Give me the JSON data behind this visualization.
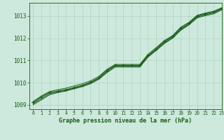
{
  "title": "Graphe pression niveau de la mer (hPa)",
  "bg_color": "#cde8dc",
  "grid_color": "#b0d4c4",
  "line_color": "#1a5c1a",
  "xlim": [
    -0.5,
    23
  ],
  "ylim": [
    1008.8,
    1013.6
  ],
  "yticks": [
    1009,
    1010,
    1011,
    1012,
    1013
  ],
  "xticks": [
    0,
    1,
    2,
    3,
    4,
    5,
    6,
    7,
    8,
    9,
    10,
    11,
    12,
    13,
    14,
    15,
    16,
    17,
    18,
    19,
    20,
    21,
    22,
    23
  ],
  "hours": [
    0,
    1,
    2,
    3,
    4,
    5,
    6,
    7,
    8,
    9,
    10,
    11,
    12,
    13,
    14,
    15,
    16,
    17,
    18,
    19,
    20,
    21,
    22,
    23
  ],
  "series_main": [
    1009.1,
    1009.35,
    1009.55,
    1009.62,
    1009.68,
    1009.78,
    1009.88,
    1010.02,
    1010.22,
    1010.55,
    1010.78,
    1010.78,
    1010.78,
    1010.78,
    1011.22,
    1011.52,
    1011.85,
    1012.08,
    1012.45,
    1012.68,
    1013.0,
    1013.1,
    1013.18,
    1013.35
  ],
  "series2": [
    1009.15,
    1009.4,
    1009.6,
    1009.68,
    1009.75,
    1009.85,
    1009.95,
    1010.08,
    1010.28,
    1010.6,
    1010.82,
    1010.82,
    1010.82,
    1010.82,
    1011.28,
    1011.58,
    1011.9,
    1012.12,
    1012.5,
    1012.72,
    1013.04,
    1013.14,
    1013.22,
    1013.38
  ],
  "series3": [
    1009.05,
    1009.28,
    1009.5,
    1009.58,
    1009.65,
    1009.75,
    1009.85,
    1009.98,
    1010.18,
    1010.5,
    1010.74,
    1010.74,
    1010.74,
    1010.74,
    1011.18,
    1011.48,
    1011.8,
    1012.04,
    1012.4,
    1012.64,
    1012.96,
    1013.06,
    1013.14,
    1013.32
  ],
  "series4": [
    1009.0,
    1009.22,
    1009.45,
    1009.55,
    1009.62,
    1009.72,
    1009.82,
    1009.95,
    1010.15,
    1010.45,
    1010.7,
    1010.7,
    1010.7,
    1010.7,
    1011.15,
    1011.45,
    1011.76,
    1012.0,
    1012.36,
    1012.6,
    1012.92,
    1013.02,
    1013.1,
    1013.28
  ]
}
